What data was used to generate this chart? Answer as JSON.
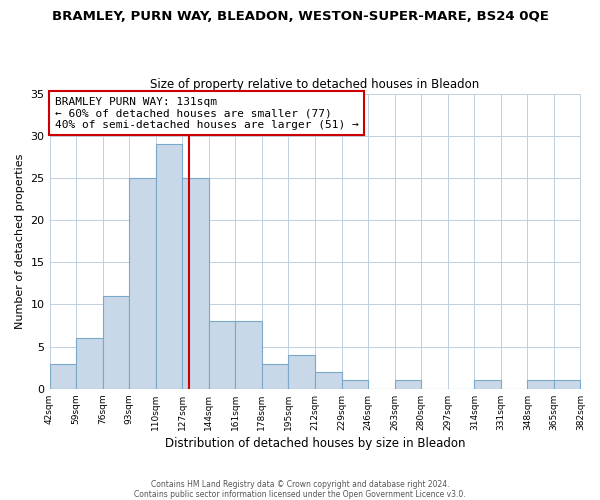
{
  "title": "BRAMLEY, PURN WAY, BLEADON, WESTON-SUPER-MARE, BS24 0QE",
  "subtitle": "Size of property relative to detached houses in Bleadon",
  "xlabel": "Distribution of detached houses by size in Bleadon",
  "ylabel": "Number of detached properties",
  "bin_labels": [
    "42sqm",
    "59sqm",
    "76sqm",
    "93sqm",
    "110sqm",
    "127sqm",
    "144sqm",
    "161sqm",
    "178sqm",
    "195sqm",
    "212sqm",
    "229sqm",
    "246sqm",
    "263sqm",
    "280sqm",
    "297sqm",
    "314sqm",
    "331sqm",
    "348sqm",
    "365sqm",
    "382sqm"
  ],
  "bin_edges": [
    42,
    59,
    76,
    93,
    110,
    127,
    144,
    161,
    178,
    195,
    212,
    229,
    246,
    263,
    280,
    297,
    314,
    331,
    348,
    365,
    382
  ],
  "bar_values": [
    3,
    6,
    11,
    25,
    29,
    25,
    8,
    8,
    3,
    4,
    2,
    1,
    0,
    1,
    0,
    0,
    1,
    0,
    1,
    1
  ],
  "bar_color": "#c8d8e8",
  "bar_edge_color": "#7aa8c8",
  "ref_line_x": 131,
  "ref_line_color": "#cc0000",
  "annotation_line1": "BRAMLEY PURN WAY: 131sqm",
  "annotation_line2": "← 60% of detached houses are smaller (77)",
  "annotation_line3": "40% of semi-detached houses are larger (51) →",
  "annotation_box_edge_color": "#cc0000",
  "ylim": [
    0,
    35
  ],
  "yticks": [
    0,
    5,
    10,
    15,
    20,
    25,
    30,
    35
  ],
  "footer1": "Contains HM Land Registry data © Crown copyright and database right 2024.",
  "footer2": "Contains public sector information licensed under the Open Government Licence v3.0."
}
